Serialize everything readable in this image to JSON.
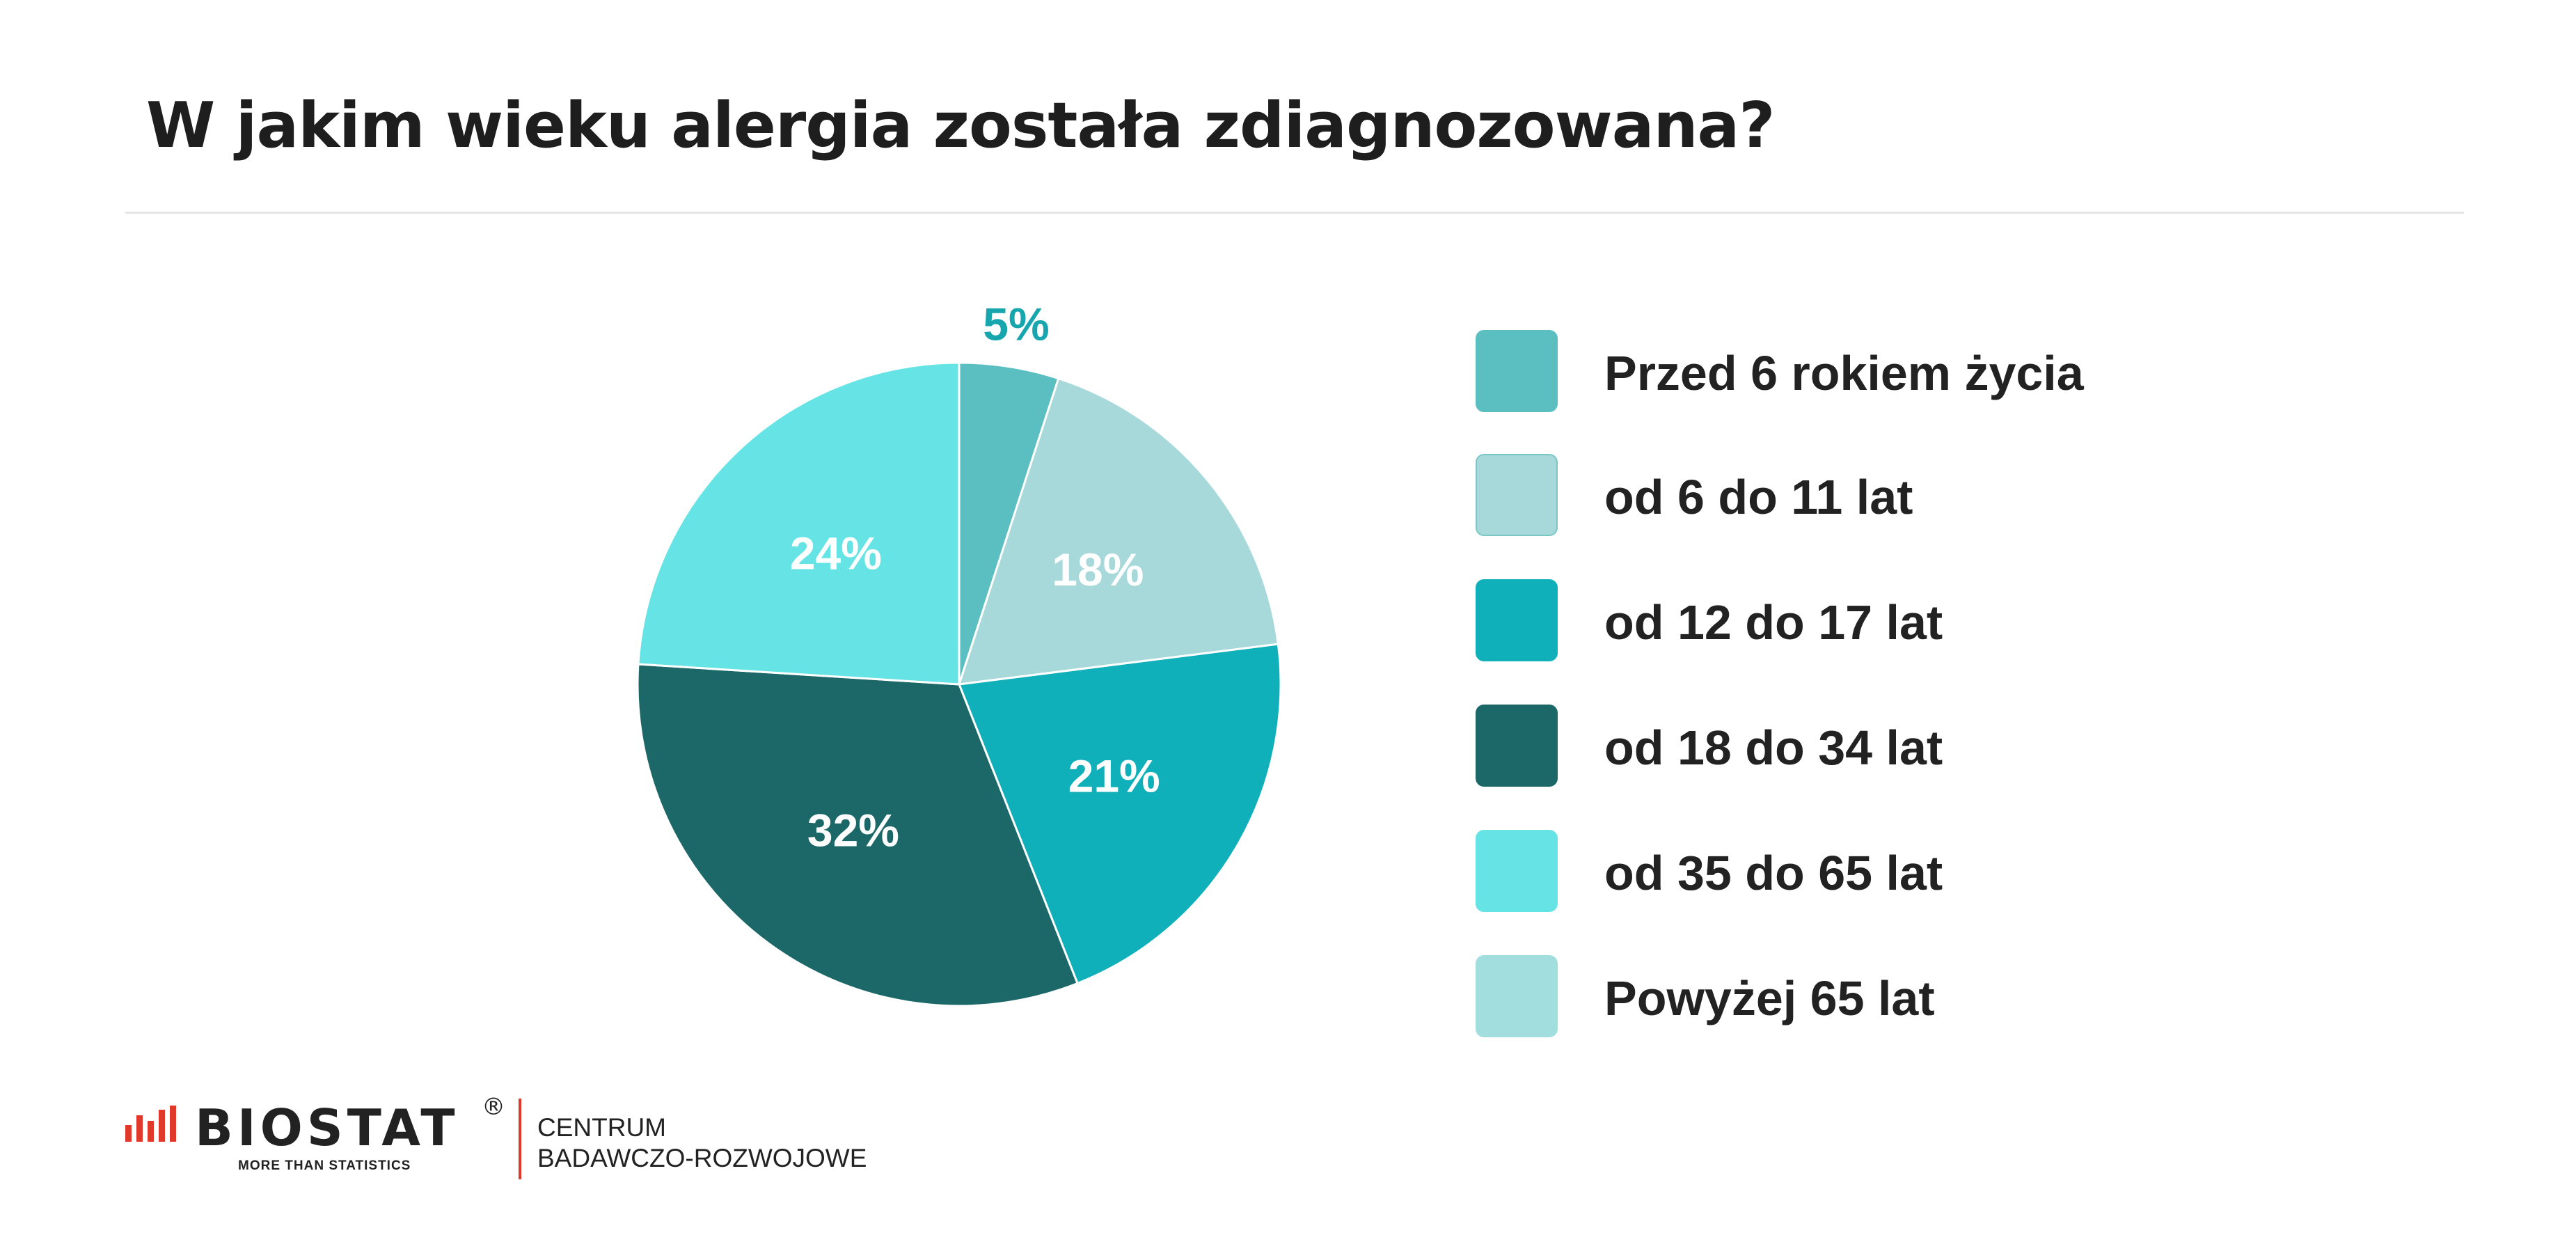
{
  "title": "W jakim wieku alergia została zdiagnozowana?",
  "chart_data": {
    "type": "pie",
    "title": "W jakim wieku alergia została zdiagnozowana?",
    "categories": [
      "Przed 6 rokiem życia",
      "od 6 do 11 lat",
      "od 12 do 17 lat",
      "od 18 do 34 lat",
      "od 35 do 65 lat",
      "Powyżej 65 lat"
    ],
    "values": [
      5,
      18,
      21,
      32,
      24,
      0
    ],
    "labels": [
      "5%",
      "18%",
      "21%",
      "32%",
      "24%",
      ""
    ],
    "colors": [
      "#5bbfc1",
      "#a8d9da",
      "#10b0ba",
      "#1c6869",
      "#66e4e5",
      "#a3dedf"
    ],
    "label_colors": [
      "#17a5ae",
      "#ffffff",
      "#ffffff",
      "#ffffff",
      "#ffffff",
      "#ffffff"
    ],
    "legend_position": "right"
  },
  "legend": [
    {
      "label": "Przed 6 rokiem życia",
      "color": "#5bbfc1"
    },
    {
      "label": "od 6 do 11 lat",
      "color": "#a8d9da"
    },
    {
      "label": "od 12 do 17 lat",
      "color": "#10b0ba"
    },
    {
      "label": "od 18 do 34 lat",
      "color": "#1c6869"
    },
    {
      "label": "od 35 do 65 lat",
      "color": "#66e4e5"
    },
    {
      "label": "Powyżej 65 lat",
      "color": "#a3dedf"
    }
  ],
  "footer": {
    "brand": "BIOSTAT",
    "registered": "®",
    "tagline": "MORE THAN STATISTICS",
    "subtitle_line1": "CENTRUM",
    "subtitle_line2": "BADAWCZO-ROZWOJOWE",
    "accent_color": "#e0392b"
  }
}
